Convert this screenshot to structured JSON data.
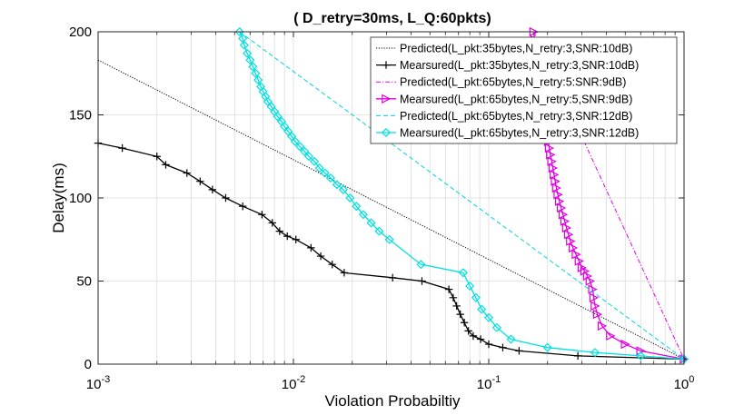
{
  "chart_data": {
    "type": "line",
    "title": "( D_retry=30ms, L_Q:60pkts)",
    "xlabel": "Violation Probabiltiy",
    "ylabel": "Delay(ms)",
    "xscale": "log",
    "xlim": [
      0.001,
      1
    ],
    "ylim": [
      0,
      200
    ],
    "xticks": [
      {
        "value": 0.001,
        "base": "10",
        "exp": "-3"
      },
      {
        "value": 0.01,
        "base": "10",
        "exp": "-2"
      },
      {
        "value": 0.1,
        "base": "10",
        "exp": "-1"
      },
      {
        "value": 1,
        "base": "10",
        "exp": "0"
      }
    ],
    "yticks": [
      0,
      50,
      100,
      150,
      200
    ],
    "grid": true,
    "legend_position": "top-right",
    "series": [
      {
        "name": "Predicted(L_pkt:35bytes,N_retry:3,SNR:10dB)",
        "color": "#000000",
        "style": "dotted",
        "marker": "none",
        "x": [
          0.001,
          1
        ],
        "y": [
          183,
          3
        ]
      },
      {
        "name": "Mearsured(L_pkt:35bytes,N_retry:3,SNR:10dB)",
        "color": "#000000",
        "style": "solid",
        "marker": "plus",
        "x": [
          0.001,
          0.00133,
          0.002,
          0.00222,
          0.00285,
          0.00333,
          0.00385,
          0.0045,
          0.0055,
          0.0069,
          0.0078,
          0.0085,
          0.0093,
          0.0103,
          0.0123,
          0.0138,
          0.0158,
          0.0182,
          0.0322,
          0.0455,
          0.0625,
          0.0658,
          0.0685,
          0.0715,
          0.075,
          0.0787,
          0.0833,
          0.0909,
          0.1,
          0.118,
          0.143,
          0.286,
          1
        ],
        "y": [
          133,
          130,
          125,
          120,
          115,
          110,
          105,
          100,
          95,
          90,
          85,
          80,
          77,
          75,
          70,
          65,
          60,
          55,
          52,
          50,
          45,
          40,
          35,
          30,
          25,
          20,
          17,
          15,
          12,
          10,
          8,
          5,
          3
        ]
      },
      {
        "name": "Predicted(L_pkt:65bytes,N_retry:5:SNR:9dB)",
        "color": "#e000e0",
        "style": "dashdot",
        "marker": "none",
        "x": [
          0.17,
          1
        ],
        "y": [
          200,
          3
        ]
      },
      {
        "name": "Mearsured(L_pkt:65bytes,N_retry:5,SNR:9dB)",
        "color": "#e000e0",
        "style": "solid",
        "marker": "triangle-right",
        "x": [
          0.17,
          0.172,
          0.174,
          0.176,
          0.178,
          0.18,
          0.182,
          0.184,
          0.186,
          0.188,
          0.19,
          0.192,
          0.194,
          0.196,
          0.198,
          0.2,
          0.202,
          0.204,
          0.207,
          0.21,
          0.213,
          0.216,
          0.219,
          0.222,
          0.226,
          0.23,
          0.235,
          0.24,
          0.245,
          0.25,
          0.256,
          0.262,
          0.27,
          0.28,
          0.29,
          0.3,
          0.31,
          0.32,
          0.33,
          0.34,
          0.345,
          0.35,
          0.36,
          0.38,
          0.42,
          0.5,
          0.6,
          1
        ],
        "y": [
          200,
          195,
          190,
          186,
          182,
          178,
          174,
          170,
          166,
          162,
          158,
          154,
          150,
          146,
          142,
          138,
          134,
          130,
          126,
          122,
          118,
          114,
          110,
          106,
          102,
          98,
          94,
          90,
          86,
          82,
          78,
          74,
          70,
          66,
          62,
          58,
          56,
          53,
          50,
          45,
          40,
          35,
          30,
          23,
          17,
          12,
          8,
          3
        ]
      },
      {
        "name": "Predicted(L_pkt:65bytes,N_retry:3,SNR:12dB)",
        "color": "#00d8d8",
        "style": "dashed",
        "marker": "none",
        "x": [
          0.0053,
          1
        ],
        "y": [
          200,
          3
        ]
      },
      {
        "name": "Mearsured(L_pkt:65bytes,N_retry:3,SNR:12dB)",
        "color": "#00e0e0",
        "style": "solid",
        "marker": "diamond",
        "x": [
          0.0053,
          0.0055,
          0.0056,
          0.0058,
          0.006,
          0.0062,
          0.0064,
          0.0066,
          0.0068,
          0.007,
          0.0072,
          0.0074,
          0.0077,
          0.008,
          0.0083,
          0.0087,
          0.009,
          0.0094,
          0.0098,
          0.0102,
          0.0108,
          0.0114,
          0.012,
          0.0128,
          0.0136,
          0.0145,
          0.0155,
          0.0167,
          0.018,
          0.0195,
          0.021,
          0.0228,
          0.025,
          0.0275,
          0.031,
          0.045,
          0.074,
          0.08,
          0.086,
          0.092,
          0.1,
          0.11,
          0.13,
          0.2,
          0.35,
          0.6,
          1
        ],
        "y": [
          200,
          196,
          192,
          187,
          183,
          179,
          175,
          171,
          167,
          164,
          161,
          158,
          155,
          152,
          149,
          146,
          143,
          140,
          137,
          134,
          131,
          128,
          125,
          122,
          118,
          115,
          112,
          108,
          105,
          100,
          95,
          90,
          85,
          80,
          75,
          60,
          55,
          47,
          40,
          33,
          28,
          22,
          15,
          10,
          7,
          5,
          3
        ]
      }
    ]
  }
}
